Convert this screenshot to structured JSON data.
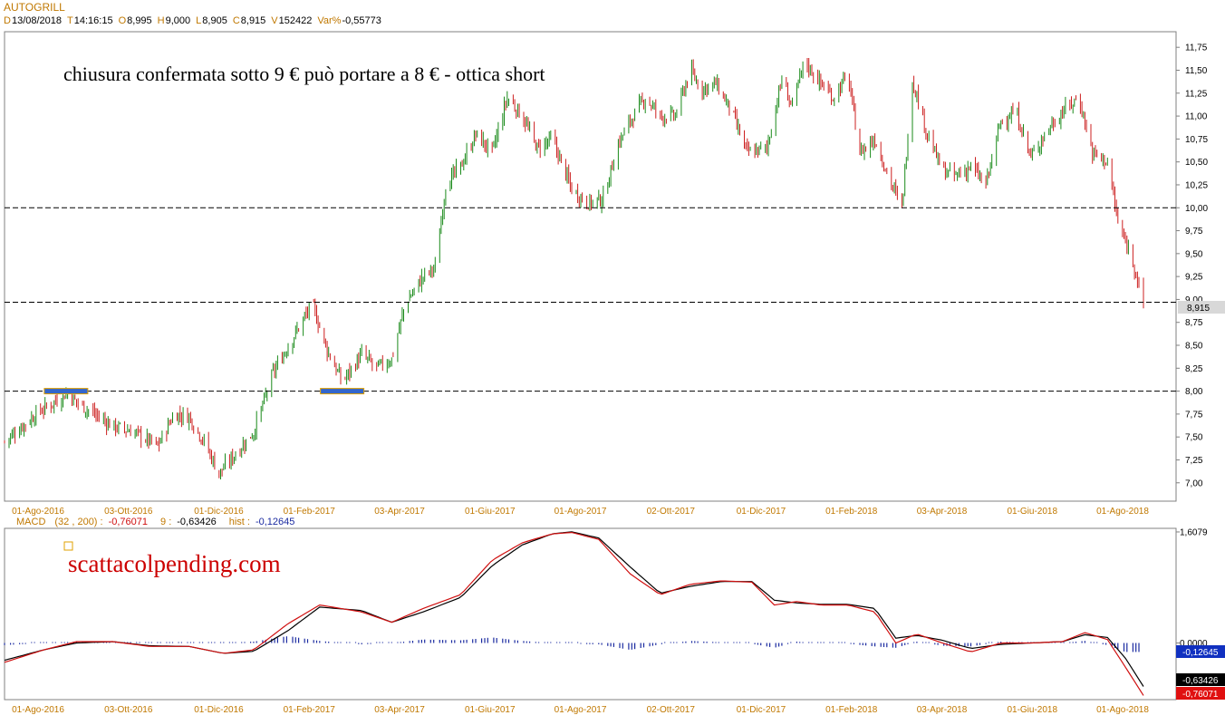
{
  "header": {
    "symbol": "AUTOGRILL",
    "items": [
      {
        "key": "D",
        "value": "13/08/2018"
      },
      {
        "key": "T",
        "value": "14:16:15"
      },
      {
        "key": "O",
        "value": "8,995"
      },
      {
        "key": "H",
        "value": "9,000"
      },
      {
        "key": "L",
        "value": "8,905"
      },
      {
        "key": "C",
        "value": "8,915"
      },
      {
        "key": "V",
        "value": "152422"
      },
      {
        "key": "Var%",
        "value": "-0,55773"
      }
    ]
  },
  "colors": {
    "up": "#1a8a1a",
    "down": "#cc2020",
    "label": "#c07800",
    "macd_line": "#d01010",
    "signal_line": "#000000",
    "hist": "#1a2aa0",
    "support_band": "#3366cc",
    "note": "#000000",
    "watermark": "#cc0000"
  },
  "annotation": {
    "text": "chiusura confermata sotto 9 € può portare  a 8 € - ottica short"
  },
  "watermark": {
    "text": "scattacolpending.com"
  },
  "chart_data": [
    {
      "type": "candlestick",
      "title": "AUTOGRILL",
      "x_labels": [
        "01-Ago-2016",
        "03-Ott-2016",
        "01-Dic-2016",
        "01-Feb-2017",
        "03-Apr-2017",
        "01-Giu-2017",
        "01-Ago-2017",
        "02-Ott-2017",
        "01-Dic-2017",
        "01-Feb-2018",
        "03-Apr-2018",
        "01-Giu-2018",
        "01-Ago-2018"
      ],
      "y_ticks": [
        "7,00",
        "7,25",
        "7,50",
        "7,75",
        "8,00",
        "8,25",
        "8,50",
        "8,75",
        "9,00",
        "9,25",
        "9,50",
        "9,75",
        "10,00",
        "10,25",
        "10,50",
        "10,75",
        "11,00",
        "11,25",
        "11,50",
        "11,75"
      ],
      "ylim": [
        6.8,
        11.92
      ],
      "horizontal_levels": [
        10.0,
        8.97,
        8.0
      ],
      "support_markers": [
        {
          "date": "2016-08-25",
          "level": 8.0
        },
        {
          "date": "2017-02-25",
          "level": 8.0
        }
      ],
      "last_price_label": "8,915",
      "last_price": 8.915,
      "date_range": [
        "2016-07-15",
        "2018-08-13"
      ],
      "price_path": [
        [
          "2016-07-15",
          7.45
        ],
        [
          "2016-08-05",
          7.75
        ],
        [
          "2016-08-25",
          7.97
        ],
        [
          "2016-09-10",
          7.78
        ],
        [
          "2016-09-25",
          7.62
        ],
        [
          "2016-10-10",
          7.55
        ],
        [
          "2016-10-25",
          7.4
        ],
        [
          "2016-11-05",
          7.75
        ],
        [
          "2016-11-15",
          7.72
        ],
        [
          "2016-11-25",
          7.45
        ],
        [
          "2016-12-05",
          7.1
        ],
        [
          "2016-12-15",
          7.3
        ],
        [
          "2016-12-28",
          7.55
        ],
        [
          "2017-01-10",
          8.2
        ],
        [
          "2017-01-22",
          8.55
        ],
        [
          "2017-02-05",
          8.95
        ],
        [
          "2017-02-15",
          8.45
        ],
        [
          "2017-02-25",
          8.1
        ],
        [
          "2017-03-10",
          8.4
        ],
        [
          "2017-03-20",
          8.25
        ],
        [
          "2017-03-30",
          8.35
        ],
        [
          "2017-04-08",
          8.95
        ],
        [
          "2017-04-20",
          9.25
        ],
        [
          "2017-04-28",
          9.35
        ],
        [
          "2017-05-05",
          10.25
        ],
        [
          "2017-05-15",
          10.45
        ],
        [
          "2017-05-25",
          10.8
        ],
        [
          "2017-06-05",
          10.6
        ],
        [
          "2017-06-15",
          11.2
        ],
        [
          "2017-06-25",
          11.0
        ],
        [
          "2017-07-05",
          10.65
        ],
        [
          "2017-07-15",
          10.75
        ],
        [
          "2017-07-28",
          10.2
        ],
        [
          "2017-08-08",
          10.05
        ],
        [
          "2017-08-18",
          10.1
        ],
        [
          "2017-08-28",
          10.7
        ],
        [
          "2017-09-05",
          10.95
        ],
        [
          "2017-09-15",
          11.2
        ],
        [
          "2017-09-25",
          11.0
        ],
        [
          "2017-10-05",
          11.0
        ],
        [
          "2017-10-15",
          11.5
        ],
        [
          "2017-10-22",
          11.3
        ],
        [
          "2017-11-01",
          11.35
        ],
        [
          "2017-11-10",
          11.1
        ],
        [
          "2017-11-22",
          10.6
        ],
        [
          "2017-12-05",
          10.65
        ],
        [
          "2017-12-15",
          11.4
        ],
        [
          "2017-12-22",
          11.1
        ],
        [
          "2017-12-30",
          11.6
        ],
        [
          "2018-01-08",
          11.4
        ],
        [
          "2018-01-18",
          11.2
        ],
        [
          "2018-01-28",
          11.45
        ],
        [
          "2018-02-05",
          10.6
        ],
        [
          "2018-02-15",
          10.75
        ],
        [
          "2018-02-25",
          10.3
        ],
        [
          "2018-03-05",
          10.0
        ],
        [
          "2018-03-12",
          11.4
        ],
        [
          "2018-03-22",
          10.8
        ],
        [
          "2018-04-01",
          10.4
        ],
        [
          "2018-04-10",
          10.35
        ],
        [
          "2018-04-20",
          10.45
        ],
        [
          "2018-04-30",
          10.25
        ],
        [
          "2018-05-10",
          10.95
        ],
        [
          "2018-05-20",
          11.05
        ],
        [
          "2018-05-30",
          10.55
        ],
        [
          "2018-06-10",
          10.85
        ],
        [
          "2018-06-20",
          11.05
        ],
        [
          "2018-07-01",
          11.2
        ],
        [
          "2018-07-10",
          10.6
        ],
        [
          "2018-07-20",
          10.5
        ],
        [
          "2018-07-28",
          9.75
        ],
        [
          "2018-08-05",
          9.5
        ],
        [
          "2018-08-10",
          9.15
        ],
        [
          "2018-08-13",
          8.915
        ]
      ]
    },
    {
      "type": "line",
      "title": "MACD",
      "params": "(32 , 200)",
      "macd_label": "-0,76071",
      "signal_period": "9",
      "signal_label": "-0,63426",
      "hist_prefix": "hist",
      "hist_label": "-0,12645",
      "y_ticks": [
        "1,6079",
        "0,0000"
      ],
      "y_levels": [
        1.6079,
        0.0
      ],
      "ylim": [
        -0.82,
        1.66
      ],
      "x_labels": [
        "01-Ago-2016",
        "03-Ott-2016",
        "01-Dic-2016",
        "01-Feb-2017",
        "03-Apr-2017",
        "01-Giu-2017",
        "01-Ago-2017",
        "02-Ott-2017",
        "01-Dic-2017",
        "01-Feb-2018",
        "03-Apr-2018",
        "01-Giu-2018",
        "01-Ago-2018"
      ],
      "date_range": [
        "2016-07-15",
        "2018-08-13"
      ],
      "macd_path": [
        [
          "2016-07-15",
          -0.28
        ],
        [
          "2016-08-10",
          -0.1
        ],
        [
          "2016-09-01",
          0.02
        ],
        [
          "2016-09-25",
          0.02
        ],
        [
          "2016-10-20",
          -0.05
        ],
        [
          "2016-11-15",
          -0.05
        ],
        [
          "2016-12-08",
          -0.15
        ],
        [
          "2016-12-28",
          -0.1
        ],
        [
          "2017-01-20",
          0.28
        ],
        [
          "2017-02-10",
          0.55
        ],
        [
          "2017-03-10",
          0.45
        ],
        [
          "2017-03-30",
          0.3
        ],
        [
          "2017-04-20",
          0.5
        ],
        [
          "2017-05-15",
          0.7
        ],
        [
          "2017-06-05",
          1.2
        ],
        [
          "2017-06-25",
          1.45
        ],
        [
          "2017-07-15",
          1.58
        ],
        [
          "2017-07-28",
          1.6
        ],
        [
          "2017-08-15",
          1.5
        ],
        [
          "2017-09-05",
          1.0
        ],
        [
          "2017-09-25",
          0.7
        ],
        [
          "2017-10-15",
          0.85
        ],
        [
          "2017-11-05",
          0.9
        ],
        [
          "2017-11-25",
          0.88
        ],
        [
          "2017-12-10",
          0.55
        ],
        [
          "2017-12-25",
          0.6
        ],
        [
          "2018-01-10",
          0.55
        ],
        [
          "2018-01-28",
          0.55
        ],
        [
          "2018-02-15",
          0.45
        ],
        [
          "2018-03-01",
          0.0
        ],
        [
          "2018-03-15",
          0.13
        ],
        [
          "2018-04-01",
          0.0
        ],
        [
          "2018-04-20",
          -0.13
        ],
        [
          "2018-05-10",
          0.0
        ],
        [
          "2018-05-30",
          0.0
        ],
        [
          "2018-06-20",
          0.02
        ],
        [
          "2018-07-05",
          0.15
        ],
        [
          "2018-07-20",
          0.05
        ],
        [
          "2018-08-01",
          -0.35
        ],
        [
          "2018-08-13",
          -0.76
        ]
      ],
      "signal_path": [
        [
          "2016-07-15",
          -0.25
        ],
        [
          "2016-08-10",
          -0.1
        ],
        [
          "2016-09-01",
          0.0
        ],
        [
          "2016-09-25",
          0.02
        ],
        [
          "2016-10-20",
          -0.04
        ],
        [
          "2016-11-15",
          -0.05
        ],
        [
          "2016-12-08",
          -0.15
        ],
        [
          "2016-12-28",
          -0.12
        ],
        [
          "2017-01-20",
          0.18
        ],
        [
          "2017-02-10",
          0.52
        ],
        [
          "2017-03-10",
          0.47
        ],
        [
          "2017-03-30",
          0.3
        ],
        [
          "2017-04-20",
          0.45
        ],
        [
          "2017-05-15",
          0.66
        ],
        [
          "2017-06-05",
          1.12
        ],
        [
          "2017-06-25",
          1.42
        ],
        [
          "2017-07-15",
          1.58
        ],
        [
          "2017-07-28",
          1.61
        ],
        [
          "2017-08-15",
          1.52
        ],
        [
          "2017-09-05",
          1.1
        ],
        [
          "2017-09-25",
          0.72
        ],
        [
          "2017-10-15",
          0.82
        ],
        [
          "2017-11-05",
          0.89
        ],
        [
          "2017-11-25",
          0.89
        ],
        [
          "2017-12-10",
          0.62
        ],
        [
          "2017-12-25",
          0.58
        ],
        [
          "2018-01-10",
          0.56
        ],
        [
          "2018-01-28",
          0.56
        ],
        [
          "2018-02-15",
          0.5
        ],
        [
          "2018-03-01",
          0.07
        ],
        [
          "2018-03-15",
          0.11
        ],
        [
          "2018-04-01",
          0.04
        ],
        [
          "2018-04-20",
          -0.08
        ],
        [
          "2018-05-10",
          -0.02
        ],
        [
          "2018-05-30",
          0.0
        ],
        [
          "2018-06-20",
          0.02
        ],
        [
          "2018-07-05",
          0.12
        ],
        [
          "2018-07-20",
          0.08
        ],
        [
          "2018-08-01",
          -0.22
        ],
        [
          "2018-08-13",
          -0.63
        ]
      ]
    }
  ]
}
